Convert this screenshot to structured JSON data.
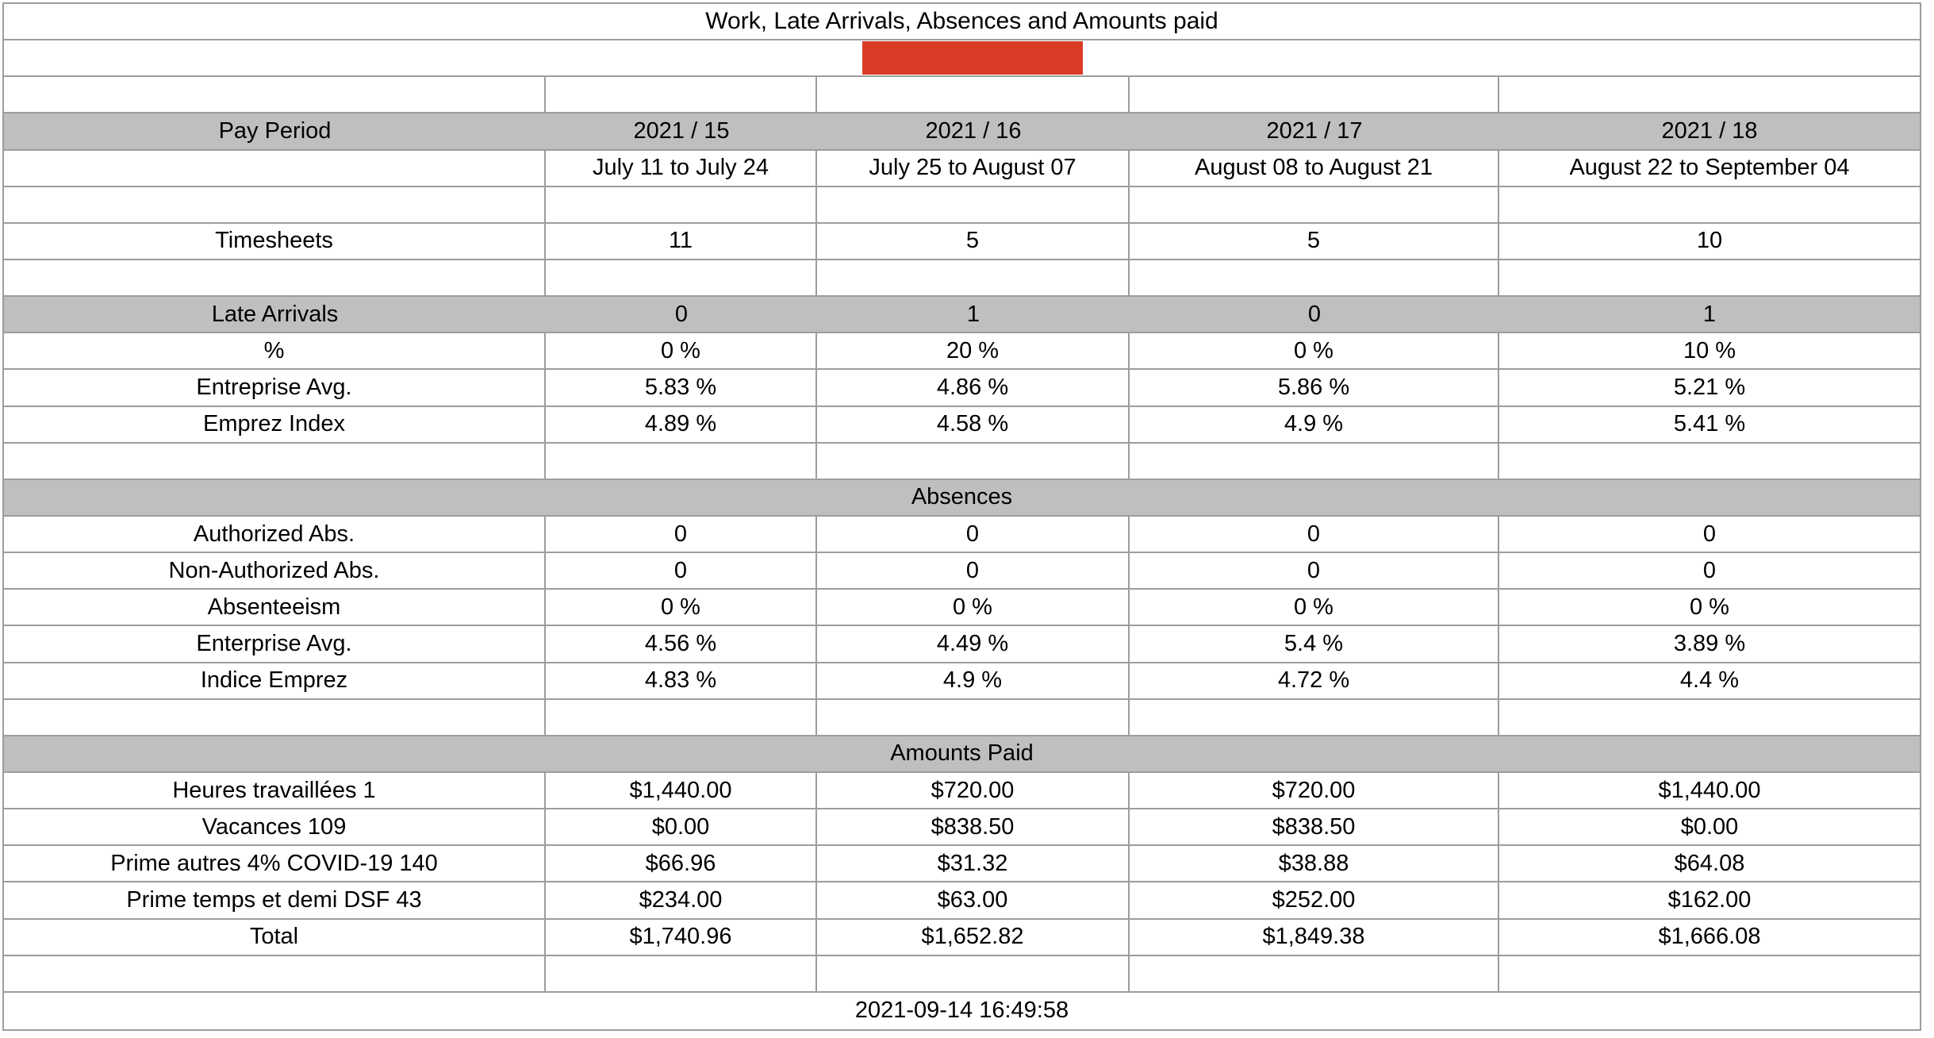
{
  "title": "Work, Late Arrivals, Absences and Amounts paid",
  "footer_timestamp": "2021-09-14 16:49:58",
  "colors": {
    "band_gray": "#bfbfbf",
    "redaction_red": "#d93b26",
    "grid_border": "#9d9d9d"
  },
  "redaction": {
    "description": "red-box-over-employee-name"
  },
  "table": {
    "rows": [
      {
        "name": "title-row",
        "type": "title",
        "cells": [
          "Work, Late Arrivals, Absences and Amounts paid"
        ]
      },
      {
        "name": "redacted-name-row",
        "type": "redacted"
      },
      {
        "name": "spacer-row-1",
        "type": "blank"
      },
      {
        "name": "pay-period-header-row",
        "type": "band-cells",
        "cells": [
          "Pay Period",
          "2021 / 15",
          "2021 / 16",
          "2021 / 17",
          "2021 / 18"
        ]
      },
      {
        "name": "pay-period-dates-row",
        "type": "data",
        "cells": [
          "",
          "July 11 to July 24",
          "July 25 to August 07",
          "August 08 to August 21",
          "August 22 to September 04"
        ]
      },
      {
        "name": "spacer-row-2",
        "type": "blank"
      },
      {
        "name": "timesheets-row",
        "type": "data",
        "cells": [
          "Timesheets",
          "11",
          "5",
          "5",
          "10"
        ]
      },
      {
        "name": "spacer-row-3",
        "type": "blank"
      },
      {
        "name": "late-arrivals-row",
        "type": "band-cells",
        "cells": [
          "Late Arrivals",
          "0",
          "1",
          "0",
          "1"
        ]
      },
      {
        "name": "late-arrivals-percent-row",
        "type": "data",
        "cells": [
          "%",
          "0 %",
          "20 %",
          "0 %",
          "10 %"
        ]
      },
      {
        "name": "late-entreprise-avg-row",
        "type": "data",
        "cells": [
          "Entreprise Avg.",
          "5.83 %",
          "4.86 %",
          "5.86 %",
          "5.21 %"
        ]
      },
      {
        "name": "late-emprez-index-row",
        "type": "data",
        "cells": [
          "Emprez Index",
          "4.89 %",
          "4.58 %",
          "4.9 %",
          "5.41 %"
        ]
      },
      {
        "name": "spacer-row-4",
        "type": "blank"
      },
      {
        "name": "absences-band-row",
        "type": "band-merged",
        "cells": [
          "Absences"
        ]
      },
      {
        "name": "authorized-abs-row",
        "type": "data",
        "cells": [
          "Authorized Abs.",
          "0",
          "0",
          "0",
          "0"
        ]
      },
      {
        "name": "non-authorized-abs-row",
        "type": "data",
        "cells": [
          "Non-Authorized Abs.",
          "0",
          "0",
          "0",
          "0"
        ]
      },
      {
        "name": "absenteeism-row",
        "type": "data",
        "cells": [
          "Absenteeism",
          "0 %",
          "0 %",
          "0 %",
          "0 %"
        ]
      },
      {
        "name": "absences-enterprise-avg-row",
        "type": "data",
        "cells": [
          "Enterprise Avg.",
          "4.56 %",
          "4.49 %",
          "5.4 %",
          "3.89 %"
        ]
      },
      {
        "name": "absences-indice-emprez-row",
        "type": "data",
        "cells": [
          "Indice Emprez",
          "4.83 %",
          "4.9 %",
          "4.72 %",
          "4.4 %"
        ]
      },
      {
        "name": "spacer-row-5",
        "type": "blank"
      },
      {
        "name": "amounts-paid-band-row",
        "type": "band-merged",
        "cells": [
          "Amounts Paid"
        ]
      },
      {
        "name": "heures-travaillees-row",
        "type": "data",
        "cells": [
          "Heures travaillées 1",
          "$1,440.00",
          "$720.00",
          "$720.00",
          "$1,440.00"
        ]
      },
      {
        "name": "vacances-row",
        "type": "data",
        "cells": [
          "Vacances 109",
          "$0.00",
          "$838.50",
          "$838.50",
          "$0.00"
        ]
      },
      {
        "name": "prime-autres-covid-row",
        "type": "data",
        "cells": [
          "Prime autres 4% COVID-19 140",
          "$66.96",
          "$31.32",
          "$38.88",
          "$64.08"
        ]
      },
      {
        "name": "prime-temps-demi-row",
        "type": "data",
        "cells": [
          "Prime temps et demi DSF 43",
          "$234.00",
          "$63.00",
          "$252.00",
          "$162.00"
        ]
      },
      {
        "name": "total-row",
        "type": "data",
        "cells": [
          "Total",
          "$1,740.96",
          "$1,652.82",
          "$1,849.38",
          "$1,666.08"
        ]
      },
      {
        "name": "spacer-row-6",
        "type": "blank"
      },
      {
        "name": "timestamp-row",
        "type": "footer",
        "cells": [
          "2021-09-14 16:49:58"
        ]
      }
    ]
  }
}
